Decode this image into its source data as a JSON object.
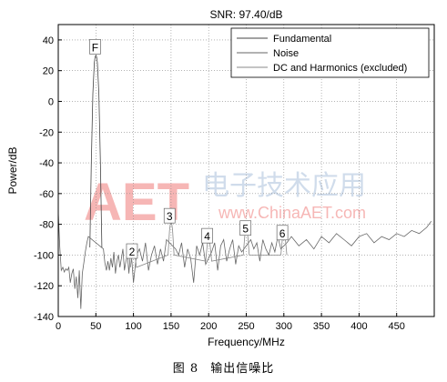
{
  "chart_data": {
    "type": "line",
    "title": "SNR:  97.40/dB",
    "xlabel": "Frequency/MHz",
    "ylabel": "Power/dB",
    "xlim": [
      0,
      500
    ],
    "ylim": [
      -140,
      50
    ],
    "xticks": [
      0,
      50,
      100,
      150,
      200,
      250,
      300,
      350,
      400,
      450
    ],
    "yticks": [
      -140,
      -120,
      -100,
      -80,
      -60,
      -40,
      -20,
      0,
      20,
      40
    ],
    "grid": true,
    "legend_position": "top-right",
    "series": [
      {
        "name": "Fundamental",
        "color": "#444444",
        "x": [
          42,
          44,
          46,
          48,
          49,
          50,
          51,
          52,
          54,
          56,
          58
        ],
        "y": [
          -95,
          -40,
          5,
          25,
          29,
          30,
          29,
          25,
          5,
          -40,
          -95
        ]
      },
      {
        "name": "Noise",
        "color": "#666666",
        "x": [
          0,
          2,
          4,
          6,
          8,
          10,
          12,
          14,
          16,
          18,
          20,
          22,
          24,
          26,
          28,
          30,
          32,
          34,
          36,
          38,
          40,
          60,
          62,
          64,
          66,
          68,
          70,
          72,
          74,
          76,
          78,
          80,
          82,
          84,
          86,
          88,
          90,
          92,
          94,
          96,
          98,
          100,
          104,
          108,
          112,
          116,
          120,
          124,
          128,
          132,
          136,
          140,
          144,
          156,
          160,
          164,
          168,
          172,
          176,
          180,
          184,
          188,
          192,
          196,
          204,
          208,
          212,
          216,
          220,
          224,
          228,
          232,
          236,
          240,
          244,
          256,
          260,
          264,
          268,
          272,
          276,
          280,
          284,
          288,
          292,
          296,
          304,
          310,
          320,
          330,
          340,
          350,
          360,
          370,
          380,
          390,
          400,
          410,
          420,
          430,
          440,
          450,
          460,
          470,
          480,
          490,
          496
        ],
        "y": [
          -72,
          -95,
          -110,
          -108,
          -111,
          -109,
          -110,
          -108,
          -118,
          -112,
          -109,
          -122,
          -114,
          -128,
          -110,
          -135,
          -112,
          -105,
          -98,
          -92,
          -88,
          -96,
          -105,
          -110,
          -104,
          -110,
          -102,
          -108,
          -98,
          -112,
          -104,
          -100,
          -108,
          -102,
          -96,
          -110,
          -104,
          -100,
          -112,
          -98,
          -104,
          -118,
          -100,
          -96,
          -104,
          -92,
          -110,
          -100,
          -94,
          -106,
          -96,
          -104,
          -90,
          -96,
          -100,
          -92,
          -108,
          -96,
          -102,
          -118,
          -94,
          -100,
          -92,
          -106,
          -98,
          -92,
          -110,
          -94,
          -90,
          -104,
          -96,
          -90,
          -106,
          -94,
          -98,
          -90,
          -96,
          -92,
          -104,
          -90,
          -96,
          -100,
          -92,
          -98,
          -88,
          -96,
          -92,
          -88,
          -94,
          -90,
          -96,
          -88,
          -92,
          -86,
          -90,
          -94,
          -88,
          -86,
          -92,
          -88,
          -90,
          -86,
          -88,
          -84,
          -86,
          -82,
          -78
        ]
      },
      {
        "name": "DC and Harmonics (excluded)",
        "color": "#888888",
        "x": [
          96,
          98,
          100,
          102,
          104,
          146,
          148,
          150,
          152,
          154,
          196,
          198,
          200,
          202,
          204,
          246,
          248,
          250,
          252,
          254,
          296,
          298,
          300,
          302,
          304
        ],
        "y": [
          -108,
          -100,
          -96,
          -100,
          -108,
          -100,
          -84,
          -76,
          -84,
          -100,
          -104,
          -94,
          -88,
          -94,
          -104,
          -100,
          -88,
          -82,
          -88,
          -100,
          -100,
          -90,
          -84,
          -90,
          -100
        ]
      }
    ],
    "annotations": [
      {
        "label": "F",
        "x": 49,
        "y": 35
      },
      {
        "label": "3",
        "x": 148,
        "y": -75
      },
      {
        "label": "2",
        "x": 98,
        "y": -98
      },
      {
        "label": "4",
        "x": 198,
        "y": -88
      },
      {
        "label": "5",
        "x": 249,
        "y": -83
      },
      {
        "label": "6",
        "x": 298,
        "y": -86
      }
    ]
  },
  "watermark": {
    "logo_text": "AET",
    "chinese_text": "电子技术应用",
    "url": "www.ChinaAET.com"
  },
  "caption": {
    "figure_number": "图 8",
    "figure_title": "输出信噪比"
  }
}
